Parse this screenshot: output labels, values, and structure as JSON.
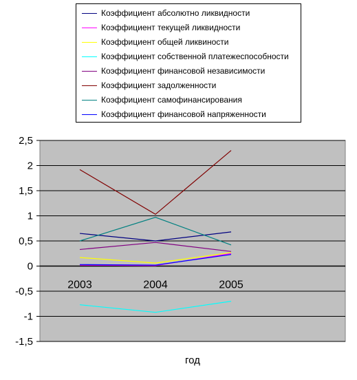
{
  "chart_data": {
    "type": "line",
    "xlabel": "год",
    "ylabel": "",
    "ylim": [
      -1.5,
      2.5
    ],
    "ytick_step": 0.5,
    "yticks": [
      "-1,5",
      "-1",
      "-0,5",
      "0",
      "0,5",
      "1",
      "1,5",
      "2",
      "2,5"
    ],
    "categories": [
      "2003",
      "2004",
      "2005"
    ],
    "grid": true,
    "legend_position": "top",
    "plot_background": "#c0c0c0",
    "series": [
      {
        "name": "Коэффициент абсолютно ликвидности",
        "color": "#000080",
        "values": [
          0.65,
          0.5,
          0.68
        ]
      },
      {
        "name": "Коэффициент текущей ликвидности",
        "color": "#ff00ff",
        "values": [
          0.02,
          0.01,
          0.25
        ]
      },
      {
        "name": "Коэффициент общей ликвиности",
        "color": "#ffff00",
        "values": [
          0.17,
          0.06,
          0.27
        ]
      },
      {
        "name": "Коэффициент собственной платежеспособности",
        "color": "#00ffff",
        "values": [
          -0.77,
          -0.92,
          -0.7
        ]
      },
      {
        "name": "Коэффициент финансовой независимости",
        "color": "#800080",
        "values": [
          0.33,
          0.47,
          0.29
        ]
      },
      {
        "name": "Коэффициент задолженности",
        "color": "#800000",
        "values": [
          1.92,
          1.03,
          2.3
        ]
      },
      {
        "name": "Коэффициент самофинансирования",
        "color": "#008080",
        "values": [
          0.5,
          0.97,
          0.42
        ]
      },
      {
        "name": "Коэффициент финансовой напряженности",
        "color": "#0000ff",
        "values": [
          0.03,
          0.02,
          0.23
        ]
      }
    ]
  }
}
